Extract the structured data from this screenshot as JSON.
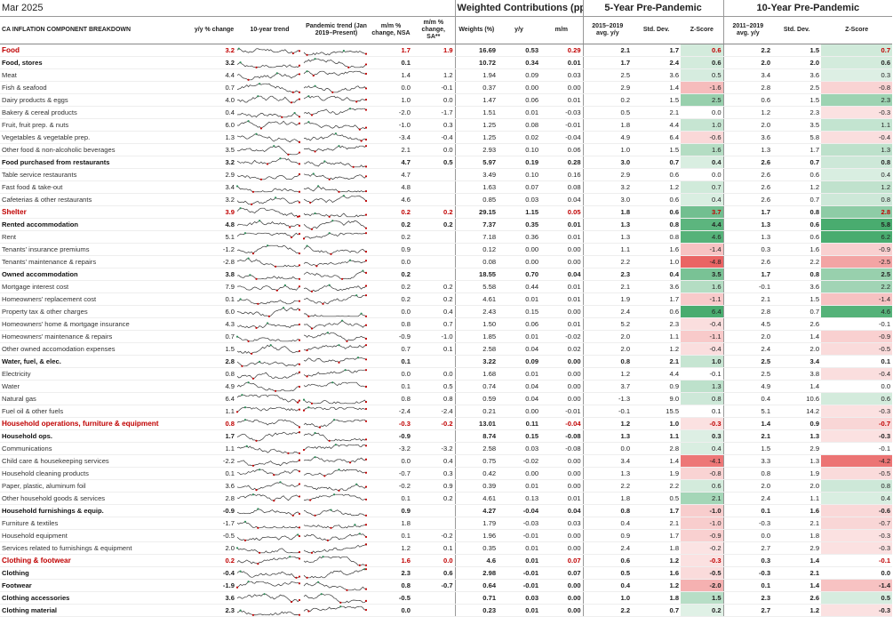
{
  "title": "Mar 2025",
  "header": {
    "component": "CA INFLATION COMPONENT BREAKDOWN",
    "yy_change": "y/y % change",
    "trend10": "10-year trend",
    "pandemic_trend": "Pandemic trend (Jan 2019–Present)",
    "mm_nsa": "m/m % change, NSA",
    "mm_sa": "m/m % change, SA**",
    "weighted_title": "Weighted Contributions (ppts)*",
    "weights": "Weights (%)",
    "w_yy": "y/y",
    "w_mm": "m/m",
    "five_title": "5-Year Pre-Pandemic",
    "five_avg": "2015–2019 avg. y/y",
    "std": "Std. Dev.",
    "z": "Z-Score",
    "ten_title": "10-Year Pre-Pandemic",
    "ten_avg": "2011–2019 avg. y/y"
  },
  "rows": [
    {
      "name": "Food",
      "level": "major",
      "yy": "3.2",
      "mm": "1.7",
      "mmsa": "1.9",
      "w": "16.69",
      "wyy": "0.53",
      "wmm": "0.29",
      "a5": "2.1",
      "s5": "1.7",
      "z5": "0.6",
      "a10": "2.2",
      "s10": "1.5",
      "z10": "0.7"
    },
    {
      "name": "Food, stores",
      "level": "sub",
      "yy": "3.2",
      "mm": "0.1",
      "mmsa": "",
      "w": "10.72",
      "wyy": "0.34",
      "wmm": "0.01",
      "a5": "1.7",
      "s5": "2.4",
      "z5": "0.6",
      "a10": "2.0",
      "s10": "2.0",
      "z10": "0.6"
    },
    {
      "name": "Meat",
      "level": "item",
      "yy": "4.4",
      "mm": "1.4",
      "mmsa": "1.2",
      "w": "1.94",
      "wyy": "0.09",
      "wmm": "0.03",
      "a5": "2.5",
      "s5": "3.6",
      "z5": "0.5",
      "a10": "3.4",
      "s10": "3.6",
      "z10": "0.3"
    },
    {
      "name": "Fish & seafood",
      "level": "item",
      "yy": "0.7",
      "mm": "0.0",
      "mmsa": "-0.1",
      "w": "0.37",
      "wyy": "0.00",
      "wmm": "0.00",
      "a5": "2.9",
      "s5": "1.4",
      "z5": "-1.6",
      "a10": "2.8",
      "s10": "2.5",
      "z10": "-0.8"
    },
    {
      "name": "Dairy products & eggs",
      "level": "item",
      "yy": "4.0",
      "mm": "1.0",
      "mmsa": "0.0",
      "w": "1.47",
      "wyy": "0.06",
      "wmm": "0.01",
      "a5": "0.2",
      "s5": "1.5",
      "z5": "2.5",
      "a10": "0.6",
      "s10": "1.5",
      "z10": "2.3"
    },
    {
      "name": "Bakery & cereal products",
      "level": "item",
      "yy": "0.4",
      "mm": "-2.0",
      "mmsa": "-1.7",
      "w": "1.51",
      "wyy": "0.01",
      "wmm": "-0.03",
      "a5": "0.5",
      "s5": "2.1",
      "z5": "0.0",
      "a10": "1.2",
      "s10": "2.3",
      "z10": "-0.3"
    },
    {
      "name": "Fruit, fruit prep. & nuts",
      "level": "item",
      "yy": "6.0",
      "mm": "-1.0",
      "mmsa": "0.3",
      "w": "1.25",
      "wyy": "0.08",
      "wmm": "-0.01",
      "a5": "1.8",
      "s5": "4.4",
      "z5": "1.0",
      "a10": "2.0",
      "s10": "3.5",
      "z10": "1.1"
    },
    {
      "name": "Vegetables & vegetable prep.",
      "level": "item",
      "yy": "1.3",
      "mm": "-3.4",
      "mmsa": "-0.4",
      "w": "1.25",
      "wyy": "0.02",
      "wmm": "-0.04",
      "a5": "4.9",
      "s5": "6.4",
      "z5": "-0.6",
      "a10": "3.6",
      "s10": "5.8",
      "z10": "-0.4"
    },
    {
      "name": "Other food & non-alcoholic beverages",
      "level": "item",
      "yy": "3.5",
      "mm": "2.1",
      "mmsa": "0.0",
      "w": "2.93",
      "wyy": "0.10",
      "wmm": "0.06",
      "a5": "1.0",
      "s5": "1.5",
      "z5": "1.6",
      "a10": "1.3",
      "s10": "1.7",
      "z10": "1.3"
    },
    {
      "name": "Food purchased from restaurants",
      "level": "sub",
      "yy": "3.2",
      "mm": "4.7",
      "mmsa": "0.5",
      "w": "5.97",
      "wyy": "0.19",
      "wmm": "0.28",
      "a5": "3.0",
      "s5": "0.7",
      "z5": "0.4",
      "a10": "2.6",
      "s10": "0.7",
      "z10": "0.8"
    },
    {
      "name": "Table service restaurants",
      "level": "item",
      "yy": "2.9",
      "mm": "4.7",
      "mmsa": "",
      "w": "3.49",
      "wyy": "0.10",
      "wmm": "0.16",
      "a5": "2.9",
      "s5": "0.6",
      "z5": "0.0",
      "a10": "2.6",
      "s10": "0.6",
      "z10": "0.4"
    },
    {
      "name": "Fast food & take-out",
      "level": "item",
      "yy": "3.4",
      "mm": "4.8",
      "mmsa": "",
      "w": "1.63",
      "wyy": "0.07",
      "wmm": "0.08",
      "a5": "3.2",
      "s5": "1.2",
      "z5": "0.7",
      "a10": "2.6",
      "s10": "1.2",
      "z10": "1.2"
    },
    {
      "name": "Cafeterias & other restaurants",
      "level": "item",
      "yy": "3.2",
      "mm": "4.6",
      "mmsa": "",
      "w": "0.85",
      "wyy": "0.03",
      "wmm": "0.04",
      "a5": "3.0",
      "s5": "0.6",
      "z5": "0.4",
      "a10": "2.6",
      "s10": "0.7",
      "z10": "0.8"
    },
    {
      "name": "Shelter",
      "level": "major",
      "yy": "3.9",
      "mm": "0.2",
      "mmsa": "0.2",
      "w": "29.15",
      "wyy": "1.15",
      "wmm": "0.05",
      "a5": "1.8",
      "s5": "0.6",
      "z5": "3.7",
      "a10": "1.7",
      "s10": "0.8",
      "z10": "2.8"
    },
    {
      "name": "Rented accommodation",
      "level": "sub",
      "yy": "4.8",
      "mm": "0.2",
      "mmsa": "0.2",
      "w": "7.37",
      "wyy": "0.35",
      "wmm": "0.01",
      "a5": "1.3",
      "s5": "0.8",
      "z5": "4.4",
      "a10": "1.3",
      "s10": "0.6",
      "z10": "5.8"
    },
    {
      "name": "Rent",
      "level": "item",
      "yy": "5.1",
      "mm": "0.2",
      "mmsa": "",
      "w": "7.18",
      "wyy": "0.36",
      "wmm": "0.01",
      "a5": "1.3",
      "s5": "0.8",
      "z5": "4.6",
      "a10": "1.3",
      "s10": "0.6",
      "z10": "6.2"
    },
    {
      "name": "Tenants' insurance premiums",
      "level": "item",
      "yy": "-1.2",
      "mm": "0.9",
      "mmsa": "",
      "w": "0.12",
      "wyy": "0.00",
      "wmm": "0.00",
      "a5": "1.1",
      "s5": "1.6",
      "z5": "-1.4",
      "a10": "0.3",
      "s10": "1.6",
      "z10": "-0.9"
    },
    {
      "name": "Tenants' maintenance & repairs",
      "level": "item",
      "yy": "-2.8",
      "mm": "0.0",
      "mmsa": "",
      "w": "0.08",
      "wyy": "0.00",
      "wmm": "0.00",
      "a5": "2.2",
      "s5": "1.0",
      "z5": "-4.8",
      "a10": "2.6",
      "s10": "2.2",
      "z10": "-2.5"
    },
    {
      "name": "Owned accommodation",
      "level": "sub",
      "yy": "3.8",
      "mm": "0.2",
      "mmsa": "",
      "w": "18.55",
      "wyy": "0.70",
      "wmm": "0.04",
      "a5": "2.3",
      "s5": "0.4",
      "z5": "3.5",
      "a10": "1.7",
      "s10": "0.8",
      "z10": "2.5"
    },
    {
      "name": "Mortgage interest cost",
      "level": "item",
      "yy": "7.9",
      "mm": "0.2",
      "mmsa": "0.2",
      "w": "5.58",
      "wyy": "0.44",
      "wmm": "0.01",
      "a5": "2.1",
      "s5": "3.6",
      "z5": "1.6",
      "a10": "-0.1",
      "s10": "3.6",
      "z10": "2.2"
    },
    {
      "name": "Homeowners' replacement cost",
      "level": "item",
      "yy": "0.1",
      "mm": "0.2",
      "mmsa": "0.2",
      "w": "4.61",
      "wyy": "0.01",
      "wmm": "0.01",
      "a5": "1.9",
      "s5": "1.7",
      "z5": "-1.1",
      "a10": "2.1",
      "s10": "1.5",
      "z10": "-1.4"
    },
    {
      "name": "Property tax & other charges",
      "level": "item",
      "yy": "6.0",
      "mm": "0.0",
      "mmsa": "0.4",
      "w": "2.43",
      "wyy": "0.15",
      "wmm": "0.00",
      "a5": "2.4",
      "s5": "0.6",
      "z5": "6.4",
      "a10": "2.8",
      "s10": "0.7",
      "z10": "4.6"
    },
    {
      "name": "Homeowners' home & mortgage insurance",
      "level": "item",
      "yy": "4.3",
      "mm": "0.8",
      "mmsa": "0.7",
      "w": "1.50",
      "wyy": "0.06",
      "wmm": "0.01",
      "a5": "5.2",
      "s5": "2.3",
      "z5": "-0.4",
      "a10": "4.5",
      "s10": "2.6",
      "z10": "-0.1"
    },
    {
      "name": "Homeowners' maintenance & repairs",
      "level": "item",
      "yy": "0.7",
      "mm": "-0.9",
      "mmsa": "-1.0",
      "w": "1.85",
      "wyy": "0.01",
      "wmm": "-0.02",
      "a5": "2.0",
      "s5": "1.1",
      "z5": "-1.1",
      "a10": "2.0",
      "s10": "1.4",
      "z10": "-0.9"
    },
    {
      "name": "Other owned accomodation expenses",
      "level": "item",
      "yy": "1.5",
      "mm": "0.7",
      "mmsa": "0.1",
      "w": "2.58",
      "wyy": "0.04",
      "wmm": "0.02",
      "a5": "2.0",
      "s5": "1.2",
      "z5": "-0.4",
      "a10": "2.4",
      "s10": "2.0",
      "z10": "-0.5"
    },
    {
      "name": "Water, fuel, & elec.",
      "level": "sub",
      "yy": "2.8",
      "mm": "0.1",
      "mmsa": "",
      "w": "3.22",
      "wyy": "0.09",
      "wmm": "0.00",
      "a5": "0.8",
      "s5": "2.1",
      "z5": "1.0",
      "a10": "2.5",
      "s10": "3.4",
      "z10": "0.1"
    },
    {
      "name": "Electricity",
      "level": "item",
      "yy": "0.8",
      "mm": "0.0",
      "mmsa": "0.0",
      "w": "1.68",
      "wyy": "0.01",
      "wmm": "0.00",
      "a5": "1.2",
      "s5": "4.4",
      "z5": "-0.1",
      "a10": "2.5",
      "s10": "3.8",
      "z10": "-0.4"
    },
    {
      "name": "Water",
      "level": "item",
      "yy": "4.9",
      "mm": "0.1",
      "mmsa": "0.5",
      "w": "0.74",
      "wyy": "0.04",
      "wmm": "0.00",
      "a5": "3.7",
      "s5": "0.9",
      "z5": "1.3",
      "a10": "4.9",
      "s10": "1.4",
      "z10": "0.0"
    },
    {
      "name": "Natural gas",
      "level": "item",
      "yy": "6.4",
      "mm": "0.8",
      "mmsa": "0.8",
      "w": "0.59",
      "wyy": "0.04",
      "wmm": "0.00",
      "a5": "-1.3",
      "s5": "9.0",
      "z5": "0.8",
      "a10": "0.4",
      "s10": "10.6",
      "z10": "0.6"
    },
    {
      "name": "Fuel oil & other fuels",
      "level": "item",
      "yy": "1.1",
      "mm": "-2.4",
      "mmsa": "-2.4",
      "w": "0.21",
      "wyy": "0.00",
      "wmm": "-0.01",
      "a5": "-0.1",
      "s5": "15.5",
      "z5": "0.1",
      "a10": "5.1",
      "s10": "14.2",
      "z10": "-0.3"
    },
    {
      "name": "Household operations, furniture & equipment",
      "level": "major",
      "yy": "0.8",
      "mm": "-0.3",
      "mmsa": "-0.2",
      "w": "13.01",
      "wyy": "0.11",
      "wmm": "-0.04",
      "a5": "1.2",
      "s5": "1.0",
      "z5": "-0.3",
      "a10": "1.4",
      "s10": "0.9",
      "z10": "-0.7"
    },
    {
      "name": "Household ops.",
      "level": "sub",
      "yy": "1.7",
      "mm": "-0.9",
      "mmsa": "",
      "w": "8.74",
      "wyy": "0.15",
      "wmm": "-0.08",
      "a5": "1.3",
      "s5": "1.1",
      "z5": "0.3",
      "a10": "2.1",
      "s10": "1.3",
      "z10": "-0.3"
    },
    {
      "name": "Communications",
      "level": "item",
      "yy": "1.1",
      "mm": "-3.2",
      "mmsa": "-3.2",
      "w": "2.58",
      "wyy": "0.03",
      "wmm": "-0.08",
      "a5": "0.0",
      "s5": "2.8",
      "z5": "0.4",
      "a10": "1.5",
      "s10": "2.9",
      "z10": "-0.1"
    },
    {
      "name": "Child care & housekeeping services",
      "level": "item",
      "yy": "-2.2",
      "mm": "0.0",
      "mmsa": "0.4",
      "w": "0.75",
      "wyy": "-0.02",
      "wmm": "0.00",
      "a5": "3.4",
      "s5": "1.4",
      "z5": "-4.1",
      "a10": "3.3",
      "s10": "1.3",
      "z10": "-4.2"
    },
    {
      "name": "Household cleaning products",
      "level": "item",
      "yy": "0.1",
      "mm": "-0.7",
      "mmsa": "0.3",
      "w": "0.42",
      "wyy": "0.00",
      "wmm": "0.00",
      "a5": "1.3",
      "s5": "1.9",
      "z5": "-0.8",
      "a10": "0.8",
      "s10": "1.9",
      "z10": "-0.5"
    },
    {
      "name": "Paper, plastic, aluminum foil",
      "level": "item",
      "yy": "3.6",
      "mm": "-0.2",
      "mmsa": "0.9",
      "w": "0.39",
      "wyy": "0.01",
      "wmm": "0.00",
      "a5": "2.2",
      "s5": "2.2",
      "z5": "0.6",
      "a10": "2.0",
      "s10": "2.0",
      "z10": "0.8"
    },
    {
      "name": "Other household goods & services",
      "level": "item",
      "yy": "2.8",
      "mm": "0.1",
      "mmsa": "0.2",
      "w": "4.61",
      "wyy": "0.13",
      "wmm": "0.01",
      "a5": "1.8",
      "s5": "0.5",
      "z5": "2.1",
      "a10": "2.4",
      "s10": "1.1",
      "z10": "0.4"
    },
    {
      "name": "Household furnishings & equip.",
      "level": "sub",
      "yy": "-0.9",
      "mm": "0.9",
      "mmsa": "",
      "w": "4.27",
      "wyy": "-0.04",
      "wmm": "0.04",
      "a5": "0.8",
      "s5": "1.7",
      "z5": "-1.0",
      "a10": "0.1",
      "s10": "1.6",
      "z10": "-0.6"
    },
    {
      "name": "Furniture & textiles",
      "level": "item",
      "yy": "-1.7",
      "mm": "1.8",
      "mmsa": "",
      "w": "1.79",
      "wyy": "-0.03",
      "wmm": "0.03",
      "a5": "0.4",
      "s5": "2.1",
      "z5": "-1.0",
      "a10": "-0.3",
      "s10": "2.1",
      "z10": "-0.7"
    },
    {
      "name": "Household equipment",
      "level": "item",
      "yy": "-0.5",
      "mm": "0.1",
      "mmsa": "-0.2",
      "w": "1.96",
      "wyy": "-0.01",
      "wmm": "0.00",
      "a5": "0.9",
      "s5": "1.7",
      "z5": "-0.9",
      "a10": "0.0",
      "s10": "1.8",
      "z10": "-0.3"
    },
    {
      "name": "Services related to furnishings & equipment",
      "level": "item",
      "yy": "2.0",
      "mm": "1.2",
      "mmsa": "0.1",
      "w": "0.35",
      "wyy": "0.01",
      "wmm": "0.00",
      "a5": "2.4",
      "s5": "1.8",
      "z5": "-0.2",
      "a10": "2.7",
      "s10": "2.9",
      "z10": "-0.3"
    },
    {
      "name": "Clothing & footwear",
      "level": "major",
      "yy": "0.2",
      "mm": "1.6",
      "mmsa": "0.0",
      "w": "4.6",
      "wyy": "0.01",
      "wmm": "0.07",
      "a5": "0.6",
      "s5": "1.2",
      "z5": "-0.3",
      "a10": "0.3",
      "s10": "1.4",
      "z10": "-0.1"
    },
    {
      "name": "Clothing",
      "level": "sub",
      "yy": "-0.4",
      "mm": "2.3",
      "mmsa": "0.6",
      "w": "2.98",
      "wyy": "-0.01",
      "wmm": "0.07",
      "a5": "0.5",
      "s5": "1.6",
      "z5": "-0.5",
      "a10": "-0.3",
      "s10": "2.1",
      "z10": "0.0"
    },
    {
      "name": "Footwear",
      "level": "sub",
      "yy": "-1.9",
      "mm": "0.8",
      "mmsa": "-0.7",
      "w": "0.64",
      "wyy": "-0.01",
      "wmm": "0.00",
      "a5": "0.4",
      "s5": "1.2",
      "z5": "-2.0",
      "a10": "0.1",
      "s10": "1.4",
      "z10": "-1.4"
    },
    {
      "name": "Clothing accessories",
      "level": "sub",
      "yy": "3.6",
      "mm": "-0.5",
      "mmsa": "",
      "w": "0.71",
      "wyy": "0.03",
      "wmm": "0.00",
      "a5": "1.0",
      "s5": "1.8",
      "z5": "1.5",
      "a10": "2.3",
      "s10": "2.6",
      "z10": "0.5"
    },
    {
      "name": "Clothing material",
      "level": "sub",
      "yy": "2.3",
      "mm": "0.0",
      "mmsa": "",
      "w": "0.23",
      "wyy": "0.01",
      "wmm": "0.00",
      "a5": "2.2",
      "s5": "0.7",
      "z5": "0.2",
      "a10": "2.7",
      "s10": "1.2",
      "z10": "-0.3"
    }
  ]
}
